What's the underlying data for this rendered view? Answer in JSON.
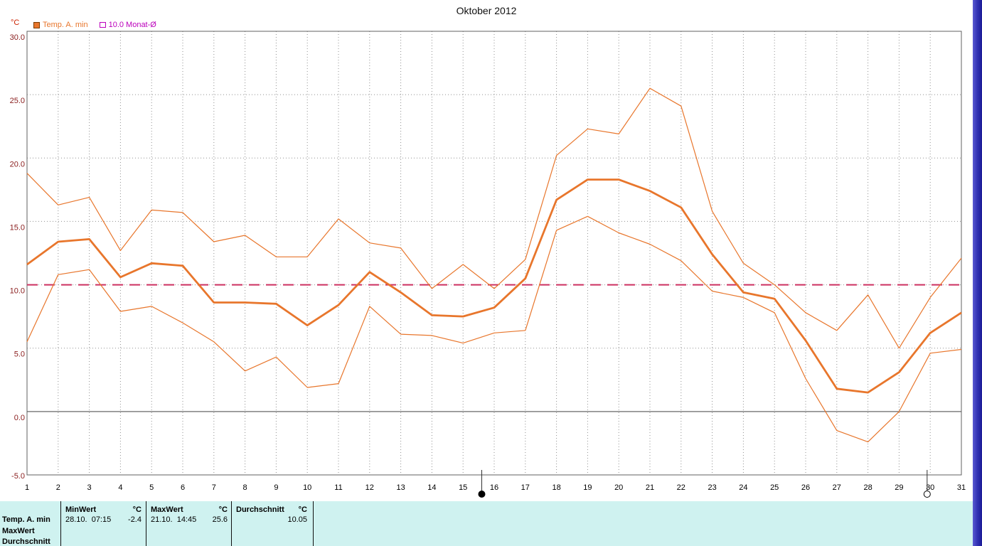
{
  "title": "Oktober 2012",
  "y_axis": {
    "unit_label": "°C",
    "ticks": [
      {
        "value": 30,
        "label": "30.0"
      },
      {
        "value": 25,
        "label": "25.0"
      },
      {
        "value": 20,
        "label": "20.0"
      },
      {
        "value": 15,
        "label": "15.0"
      },
      {
        "value": 10,
        "label": "10.0"
      },
      {
        "value": 5,
        "label": "5.0"
      },
      {
        "value": 0,
        "label": "0.0"
      },
      {
        "value": -5,
        "label": "-5.0"
      }
    ]
  },
  "legend": {
    "series_label": "Temp. A. min",
    "average_label": "10.0 Monat-Ø"
  },
  "colors": {
    "series_orange": "#E8762C",
    "legend_magenta": "#BB00BB",
    "average_line": "#CC3060",
    "axis_label": "#8B2020",
    "grid": "#909090",
    "zero_line": "#808080",
    "table_bg": "#CFF2F0"
  },
  "chart_data": {
    "type": "line",
    "title": "Oktober 2012",
    "x": [
      1,
      2,
      3,
      4,
      5,
      6,
      7,
      8,
      9,
      10,
      11,
      12,
      13,
      14,
      15,
      16,
      17,
      18,
      19,
      20,
      21,
      22,
      23,
      24,
      25,
      26,
      27,
      28,
      29,
      30,
      31
    ],
    "ylim": [
      -5,
      30
    ],
    "monthly_average": 10.0,
    "grid": true,
    "series": [
      {
        "name": "daily-max",
        "style": "thin",
        "values": [
          18.8,
          16.3,
          16.9,
          12.7,
          15.9,
          15.7,
          13.4,
          13.9,
          12.2,
          12.2,
          15.2,
          13.3,
          12.9,
          9.7,
          11.6,
          9.7,
          12.0,
          20.2,
          22.3,
          21.9,
          25.5,
          24.1,
          15.8,
          11.7,
          10.0,
          7.8,
          6.4,
          9.2,
          5.0,
          9.0,
          12.1
        ]
      },
      {
        "name": "temp-a-min",
        "style": "thick",
        "values": [
          11.6,
          13.4,
          13.6,
          10.6,
          11.7,
          11.5,
          8.6,
          8.6,
          8.5,
          6.8,
          8.4,
          11.0,
          9.4,
          7.6,
          7.5,
          8.2,
          10.5,
          16.7,
          18.3,
          18.3,
          17.4,
          16.1,
          12.4,
          9.4,
          8.9,
          5.6,
          1.8,
          1.5,
          3.1,
          6.2,
          7.8
        ]
      },
      {
        "name": "daily-min",
        "style": "thin",
        "values": [
          5.5,
          10.8,
          11.2,
          7.9,
          8.3,
          7.0,
          5.5,
          3.2,
          4.3,
          1.9,
          2.2,
          8.3,
          6.1,
          6.0,
          5.4,
          6.2,
          6.4,
          14.3,
          15.4,
          14.1,
          13.2,
          11.9,
          9.5,
          9.0,
          7.8,
          2.6,
          -1.5,
          -2.4,
          0.0,
          4.6,
          4.9
        ]
      }
    ],
    "moon_markers": [
      {
        "day": 15.6,
        "phase": "new-moon"
      },
      {
        "day": 29.9,
        "phase": "full-moon"
      }
    ]
  },
  "table": {
    "row_labels": [
      "Temp. A. min",
      "MaxWert",
      "Durchschnitt"
    ],
    "min": {
      "header": "MinWert",
      "unit": "°C",
      "datetime": "28.10.  07:15",
      "value": "-2.4"
    },
    "max": {
      "header": "MaxWert",
      "unit": "°C",
      "datetime": "21.10.  14:45",
      "value": "25.6"
    },
    "avg": {
      "header": "Durchschnitt",
      "unit": "°C",
      "value": "10.05"
    }
  }
}
